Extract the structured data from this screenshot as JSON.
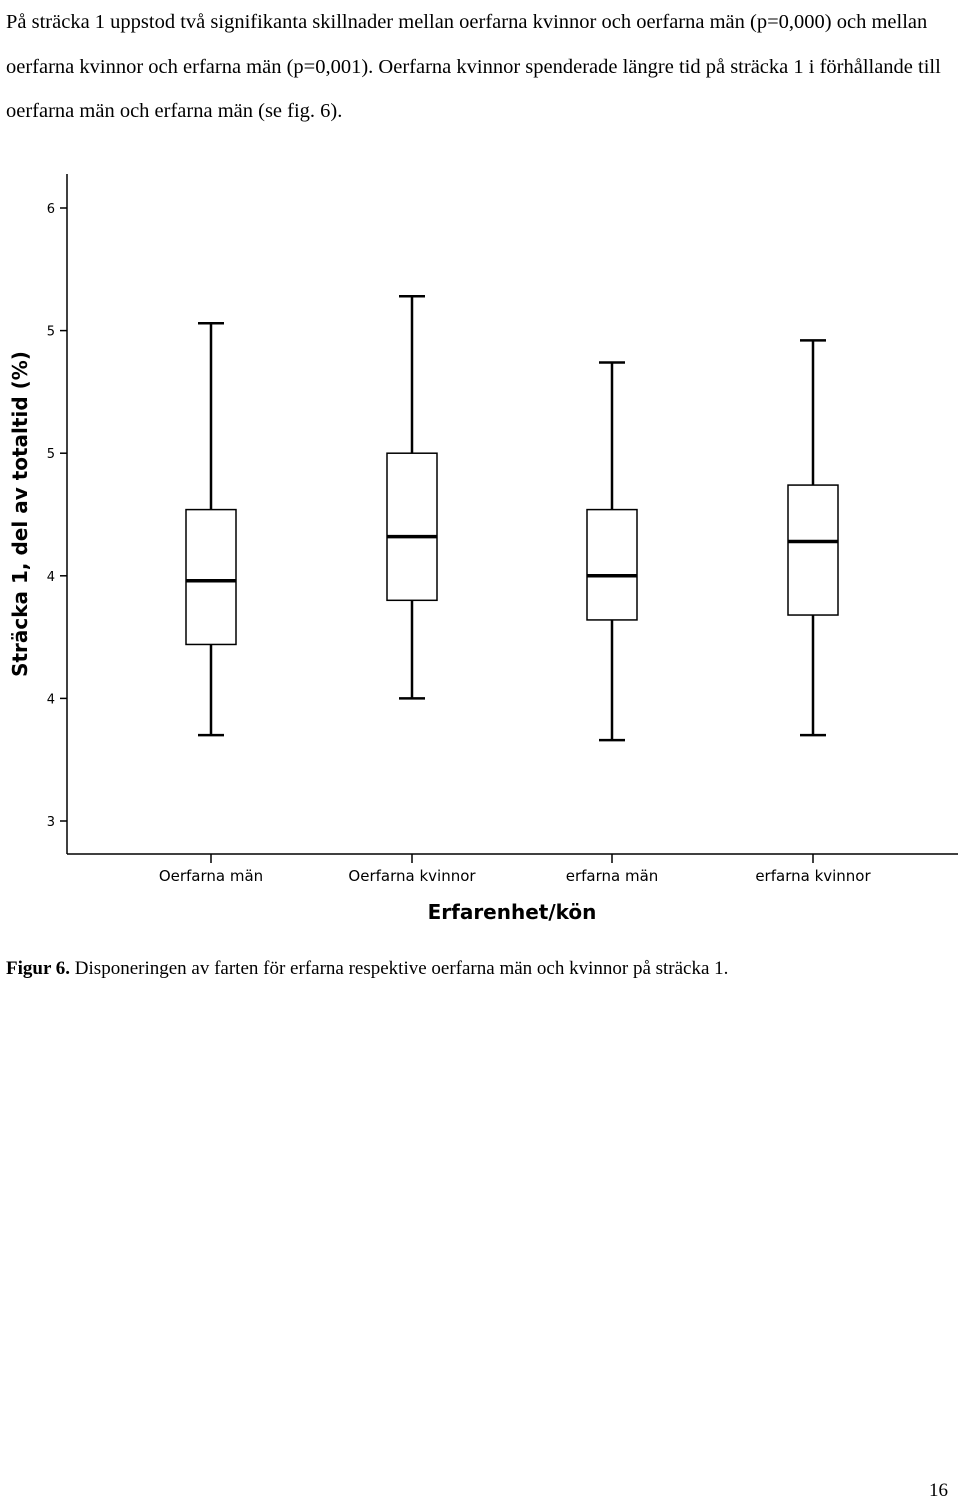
{
  "paragraph": "På sträcka 1 uppstod två signifikanta skillnader mellan oerfarna kvinnor och oerfarna män (p=0,000) och mellan oerfarna kvinnor och erfarna män (p=0,001). Oerfarna kvinnor spenderade längre tid på sträcka 1 i förhållande till oerfarna män och erfarna män (se fig. 6).",
  "chart_data": {
    "type": "boxplot",
    "ylabel": "Sträcka 1, del av totaltid (%)",
    "xlabel": "Erfarenhet/kön",
    "ylim": [
      2.86,
      5.63
    ],
    "y_ticks": [
      {
        "value": 3.0,
        "label": "3"
      },
      {
        "value": 3.5,
        "label": "4"
      },
      {
        "value": 4.0,
        "label": "4"
      },
      {
        "value": 4.5,
        "label": "5"
      },
      {
        "value": 5.0,
        "label": "5"
      },
      {
        "value": 5.5,
        "label": "6"
      }
    ],
    "grid": false,
    "categories": [
      "Oerfarna män",
      "Oerfarna kvinnor",
      "erfarna män",
      "erfarna kvinnor"
    ],
    "boxes": [
      {
        "min": 3.35,
        "q1": 3.72,
        "median": 3.98,
        "q3": 4.27,
        "max": 5.03
      },
      {
        "min": 3.5,
        "q1": 3.9,
        "median": 4.16,
        "q3": 4.5,
        "max": 5.14
      },
      {
        "min": 3.33,
        "q1": 3.82,
        "median": 4.0,
        "q3": 4.27,
        "max": 4.87
      },
      {
        "min": 3.35,
        "q1": 3.84,
        "median": 4.14,
        "q3": 4.37,
        "max": 4.96
      }
    ]
  },
  "caption": {
    "label": "Figur 6.",
    "text": " Disponeringen av farten för erfarna respektive oerfarna män och kvinnor på sträcka 1."
  },
  "page_number": "16"
}
